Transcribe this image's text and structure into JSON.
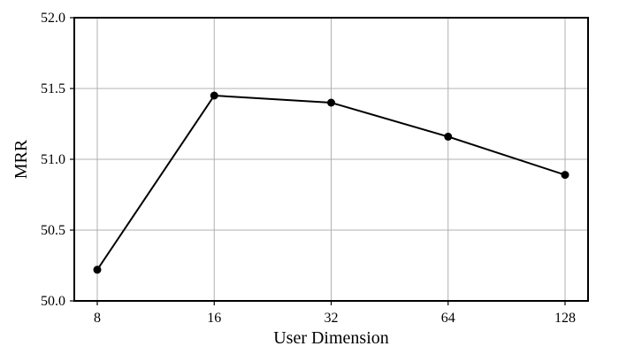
{
  "chart_data": {
    "type": "line",
    "title": "",
    "xlabel": "User Dimension",
    "ylabel": "MRR",
    "x_scale": "categorical",
    "x": [
      "8",
      "16",
      "32",
      "64",
      "128"
    ],
    "series": [
      {
        "name": "",
        "values": [
          50.22,
          51.45,
          51.4,
          51.16,
          50.89
        ],
        "color": "#000000",
        "marker": "circle"
      }
    ],
    "ylim": [
      50.0,
      52.0
    ],
    "yticks": [
      "50.0",
      "50.5",
      "51.0",
      "51.5",
      "52.0"
    ],
    "grid": true,
    "legend": "none"
  }
}
